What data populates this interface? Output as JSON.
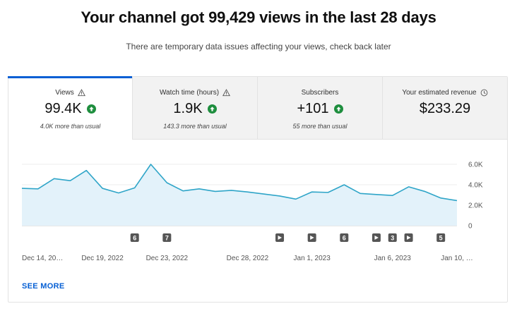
{
  "headline": "Your channel got 99,429 views in the last 28 days",
  "subline": "There are temporary data issues affecting your views, check back later",
  "tabs": [
    {
      "label": "Views",
      "icon": "warning-icon",
      "value": "99.4K",
      "trend": "up",
      "note": "4.0K more than usual",
      "active": true
    },
    {
      "label": "Watch time (hours)",
      "icon": "warning-icon",
      "value": "1.9K",
      "trend": "up",
      "note": "143.3 more than usual",
      "active": false
    },
    {
      "label": "Subscribers",
      "icon": "",
      "value": "+101",
      "trend": "up",
      "note": "55 more than usual",
      "active": false
    },
    {
      "label": "Your estimated revenue",
      "icon": "clock-icon",
      "value": "$233.29",
      "trend": "",
      "note": "",
      "active": false
    }
  ],
  "colors": {
    "accent": "#065fd4",
    "line": "#2fa5c8",
    "fill": "#e3f2fa",
    "up": "#1e8e3e",
    "marker": "#555555"
  },
  "chart_data": {
    "type": "area",
    "x": [
      "Dec 14, 2022",
      "Dec 15, 2022",
      "Dec 16, 2022",
      "Dec 17, 2022",
      "Dec 18, 2022",
      "Dec 19, 2022",
      "Dec 20, 2022",
      "Dec 21, 2022",
      "Dec 22, 2022",
      "Dec 23, 2022",
      "Dec 24, 2022",
      "Dec 25, 2022",
      "Dec 26, 2022",
      "Dec 27, 2022",
      "Dec 28, 2022",
      "Dec 29, 2022",
      "Dec 30, 2022",
      "Dec 31, 2022",
      "Jan 1, 2023",
      "Jan 2, 2023",
      "Jan 3, 2023",
      "Jan 4, 2023",
      "Jan 5, 2023",
      "Jan 6, 2023",
      "Jan 7, 2023",
      "Jan 8, 2023",
      "Jan 9, 2023",
      "Jan 10, 2023"
    ],
    "values": [
      3650,
      3600,
      4600,
      4400,
      5400,
      3650,
      3200,
      3700,
      6000,
      4200,
      3400,
      3600,
      3350,
      3450,
      3300,
      3100,
      2900,
      2600,
      3300,
      3250,
      4000,
      3150,
      3050,
      2950,
      3800,
      3350,
      2700,
      2450
    ],
    "y_ticks": [
      "6.0K",
      "4.0K",
      "2.0K",
      "0"
    ],
    "ylim": [
      0,
      6000
    ],
    "x_tick_labels": [
      {
        "label": "Dec 14, 20…",
        "index": 0
      },
      {
        "label": "Dec 19, 2022",
        "index": 5
      },
      {
        "label": "Dec 23, 2022",
        "index": 9
      },
      {
        "label": "Dec 28, 2022",
        "index": 14
      },
      {
        "label": "Jan 1, 2023",
        "index": 18
      },
      {
        "label": "Jan 6, 2023",
        "index": 23
      },
      {
        "label": "Jan 10, …",
        "index": 27
      }
    ],
    "markers": [
      {
        "index": 7,
        "text": "6"
      },
      {
        "index": 9,
        "text": "7"
      },
      {
        "index": 16,
        "text": "▶"
      },
      {
        "index": 18,
        "text": "▶"
      },
      {
        "index": 20,
        "text": "6"
      },
      {
        "index": 22,
        "text": "▶"
      },
      {
        "index": 23,
        "text": "3"
      },
      {
        "index": 24,
        "text": "▶"
      },
      {
        "index": 26,
        "text": "5"
      }
    ],
    "grid": true
  },
  "see_more": "SEE MORE"
}
